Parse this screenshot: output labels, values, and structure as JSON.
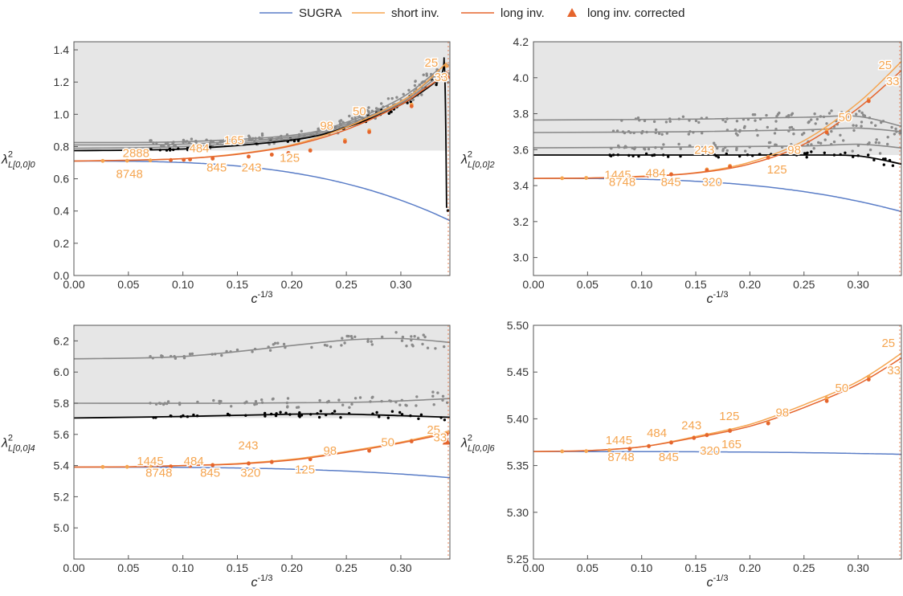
{
  "legend": {
    "items": [
      {
        "label": "SUGRA",
        "color": "#5a7dc7",
        "marker": "line"
      },
      {
        "label": "short inv.",
        "color": "#f5a550",
        "marker": "line"
      },
      {
        "label": "long inv.",
        "color": "#e5652d",
        "marker": "line"
      },
      {
        "label": "long inv. corrected",
        "color": "#e5652d",
        "marker": "triangle"
      }
    ]
  },
  "chart_data": [
    {
      "type": "line",
      "xlabel": "c^{-1/3}",
      "ylabel": "λ²_{L[0,0]0}",
      "xlim": [
        0,
        0.345
      ],
      "ylim": [
        0,
        1.45
      ],
      "xticks": [
        "0.00",
        "0.05",
        "0.10",
        "0.15",
        "0.20",
        "0.25",
        "0.30"
      ],
      "yticks": [
        "0.0",
        "0.2",
        "0.4",
        "0.6",
        "0.8",
        "1.0",
        "1.2",
        "1.4"
      ],
      "shaded_above": 0.775,
      "gray_series": [
        [
          0.0,
          0.825,
          0.1,
          0.83,
          0.2,
          0.87,
          0.25,
          0.95,
          0.3,
          1.1,
          0.335,
          1.28
        ],
        [
          0.0,
          0.81,
          0.1,
          0.815,
          0.2,
          0.86,
          0.25,
          0.94,
          0.3,
          1.08,
          0.335,
          1.26
        ],
        [
          0.0,
          0.79,
          0.1,
          0.8,
          0.2,
          0.85,
          0.25,
          0.93,
          0.3,
          1.07,
          0.335,
          1.24
        ]
      ],
      "black_series": [
        0.0,
        0.775,
        0.1,
        0.785,
        0.2,
        0.84,
        0.25,
        0.92,
        0.3,
        1.06,
        0.335,
        1.22,
        0.34,
        1.3,
        0.342,
        0.42
      ],
      "sugra": {
        "a": 0.71,
        "k": 9.0
      },
      "short": [
        0.0,
        0.71,
        0.05,
        0.715,
        0.1,
        0.725,
        0.15,
        0.755,
        0.2,
        0.81,
        0.25,
        0.92,
        0.3,
        1.08,
        0.32,
        1.18,
        0.342,
        1.32
      ],
      "long": [
        0.0,
        0.71,
        0.05,
        0.715,
        0.1,
        0.725,
        0.15,
        0.752,
        0.2,
        0.805,
        0.25,
        0.905,
        0.3,
        1.06,
        0.32,
        1.15,
        0.342,
        1.25
      ],
      "short_points": [
        [
          0.0265,
          0.711
        ],
        [
          0.0488,
          0.712
        ],
        [
          0.0701,
          0.714
        ],
        [
          0.0889,
          0.716
        ],
        [
          0.1008,
          0.718
        ],
        [
          0.1066,
          0.72
        ],
        [
          0.1273,
          0.725
        ],
        [
          0.1603,
          0.738
        ],
        [
          0.1816,
          0.75
        ],
        [
          0.1968,
          0.76
        ],
        [
          0.2169,
          0.778
        ],
        [
          0.2487,
          0.84
        ],
        [
          0.271,
          0.9
        ],
        [
          0.3098,
          1.06
        ],
        [
          0.3419,
          1.3
        ]
      ],
      "long_points": [
        [
          0.0889,
          0.716
        ],
        [
          0.1008,
          0.718
        ],
        [
          0.1066,
          0.72
        ],
        [
          0.1273,
          0.726
        ],
        [
          0.1603,
          0.738
        ],
        [
          0.1816,
          0.75
        ],
        [
          0.1968,
          0.76
        ],
        [
          0.2169,
          0.775
        ],
        [
          0.2487,
          0.83
        ],
        [
          0.271,
          0.89
        ],
        [
          0.3098,
          1.05
        ],
        [
          0.3419,
          1.25
        ]
      ],
      "corrected": [
        [
          0.3419,
          1.24
        ]
      ],
      "labels": [
        {
          "text": "25",
          "x": 0.328,
          "y": 1.32
        },
        {
          "text": "33",
          "x": 0.337,
          "y": 1.23
        },
        {
          "text": "50",
          "x": 0.262,
          "y": 1.02
        },
        {
          "text": "98",
          "x": 0.232,
          "y": 0.93
        },
        {
          "text": "165",
          "x": 0.147,
          "y": 0.84
        },
        {
          "text": "125",
          "x": 0.198,
          "y": 0.73
        },
        {
          "text": "484",
          "x": 0.115,
          "y": 0.79
        },
        {
          "text": "243",
          "x": 0.163,
          "y": 0.67
        },
        {
          "text": "2888",
          "x": 0.057,
          "y": 0.76
        },
        {
          "text": "845",
          "x": 0.131,
          "y": 0.67
        },
        {
          "text": "8748",
          "x": 0.051,
          "y": 0.63
        }
      ]
    },
    {
      "type": "line",
      "xlabel": "c^{-1/3}",
      "ylabel": "λ²_{L[0,0]2}",
      "xlim": [
        0,
        0.34
      ],
      "ylim": [
        2.9,
        4.2
      ],
      "xticks": [
        "0.00",
        "0.05",
        "0.10",
        "0.15",
        "0.20",
        "0.25",
        "0.30"
      ],
      "yticks": [
        "3.0",
        "3.2",
        "3.4",
        "3.6",
        "3.8",
        "4.0",
        "4.2"
      ],
      "shaded_above": 3.57,
      "gray_series": [
        [
          0.0,
          3.765,
          0.15,
          3.77,
          0.25,
          3.78,
          0.3,
          3.785,
          0.34,
          3.73
        ],
        [
          0.0,
          3.695,
          0.15,
          3.7,
          0.25,
          3.71,
          0.3,
          3.72,
          0.34,
          3.7
        ],
        [
          0.0,
          3.61,
          0.15,
          3.615,
          0.25,
          3.62,
          0.3,
          3.63,
          0.34,
          3.61
        ]
      ],
      "black_series": [
        0.0,
        3.57,
        0.15,
        3.57,
        0.25,
        3.57,
        0.3,
        3.565,
        0.34,
        3.52
      ],
      "sugra": {
        "a": 3.44,
        "k": 4.7
      },
      "short": [
        0.0,
        3.44,
        0.05,
        3.442,
        0.1,
        3.452,
        0.15,
        3.472,
        0.2,
        3.53,
        0.25,
        3.65,
        0.3,
        3.86,
        0.34,
        4.09
      ],
      "long": [
        0.0,
        3.44,
        0.05,
        3.442,
        0.1,
        3.45,
        0.15,
        3.47,
        0.2,
        3.52,
        0.25,
        3.63,
        0.3,
        3.83,
        0.34,
        4.04
      ],
      "short_points": [
        [
          0.0265,
          3.441
        ],
        [
          0.0488,
          3.443
        ],
        [
          0.0701,
          3.446
        ],
        [
          0.0889,
          3.449
        ],
        [
          0.1066,
          3.455
        ],
        [
          0.1273,
          3.464
        ],
        [
          0.1603,
          3.49
        ],
        [
          0.1816,
          3.51
        ],
        [
          0.2169,
          3.56
        ],
        [
          0.271,
          3.71
        ],
        [
          0.3098,
          3.88
        ]
      ],
      "long_points": [
        [
          0.0889,
          3.448
        ],
        [
          0.1066,
          3.453
        ],
        [
          0.1273,
          3.462
        ],
        [
          0.1603,
          3.485
        ],
        [
          0.1816,
          3.505
        ],
        [
          0.2169,
          3.555
        ],
        [
          0.271,
          3.695
        ],
        [
          0.3098,
          3.87
        ]
      ],
      "corrected": [],
      "labels": [
        {
          "text": "25",
          "x": 0.325,
          "y": 4.07
        },
        {
          "text": "33",
          "x": 0.332,
          "y": 3.98
        },
        {
          "text": "50",
          "x": 0.288,
          "y": 3.78
        },
        {
          "text": "98",
          "x": 0.241,
          "y": 3.6
        },
        {
          "text": "243",
          "x": 0.158,
          "y": 3.6
        },
        {
          "text": "125",
          "x": 0.225,
          "y": 3.49
        },
        {
          "text": "1445",
          "x": 0.078,
          "y": 3.46
        },
        {
          "text": "484",
          "x": 0.113,
          "y": 3.47
        },
        {
          "text": "320",
          "x": 0.165,
          "y": 3.42
        },
        {
          "text": "845",
          "x": 0.127,
          "y": 3.42
        },
        {
          "text": "8748",
          "x": 0.082,
          "y": 3.42
        }
      ]
    },
    {
      "type": "line",
      "xlabel": "c^{-1/3}",
      "ylabel": "λ²_{L[0,0]4}",
      "xlim": [
        0,
        0.345
      ],
      "ylim": [
        4.8,
        6.3
      ],
      "xticks": [
        "0.00",
        "0.05",
        "0.10",
        "0.15",
        "0.20",
        "0.25",
        "0.30"
      ],
      "yticks": [
        "5.0",
        "5.2",
        "5.4",
        "5.6",
        "5.8",
        "6.0",
        "6.2"
      ],
      "shaded_above": 5.705,
      "gray_series": [
        [
          0.0,
          6.085,
          0.1,
          6.1,
          0.2,
          6.17,
          0.25,
          6.205,
          0.3,
          6.215,
          0.345,
          6.19
        ],
        [
          0.0,
          5.8,
          0.15,
          5.8,
          0.25,
          5.805,
          0.3,
          5.815,
          0.345,
          5.83
        ]
      ],
      "black_series": [
        0.0,
        5.705,
        0.1,
        5.715,
        0.2,
        5.73,
        0.25,
        5.73,
        0.3,
        5.72,
        0.345,
        5.71
      ],
      "sugra": {
        "a": 5.39,
        "k": 1.65
      },
      "short": [
        0.0,
        5.39,
        0.05,
        5.392,
        0.1,
        5.4,
        0.15,
        5.413,
        0.2,
        5.44,
        0.25,
        5.49,
        0.3,
        5.55,
        0.345,
        5.62
      ],
      "long": [
        0.0,
        5.39,
        0.05,
        5.392,
        0.1,
        5.4,
        0.15,
        5.41,
        0.2,
        5.435,
        0.25,
        5.485,
        0.3,
        5.545,
        0.345,
        5.61
      ],
      "short_points": [
        [
          0.0265,
          5.391
        ],
        [
          0.0488,
          5.392
        ],
        [
          0.0701,
          5.394
        ],
        [
          0.0889,
          5.395
        ],
        [
          0.1066,
          5.398
        ],
        [
          0.1273,
          5.404
        ],
        [
          0.1603,
          5.415
        ],
        [
          0.1816,
          5.425
        ],
        [
          0.2169,
          5.445
        ],
        [
          0.271,
          5.5
        ],
        [
          0.3098,
          5.56
        ],
        [
          0.3419,
          5.61
        ]
      ],
      "long_points": [
        [
          0.0889,
          5.394
        ],
        [
          0.1066,
          5.397
        ],
        [
          0.1273,
          5.402
        ],
        [
          0.1603,
          5.413
        ],
        [
          0.1816,
          5.422
        ],
        [
          0.2169,
          5.44
        ],
        [
          0.271,
          5.495
        ],
        [
          0.3098,
          5.555
        ],
        [
          0.3419,
          5.6
        ]
      ],
      "corrected": [
        [
          0.3419,
          5.555
        ]
      ],
      "labels": [
        {
          "text": "25",
          "x": 0.33,
          "y": 5.63
        },
        {
          "text": "33",
          "x": 0.336,
          "y": 5.58
        },
        {
          "text": "50",
          "x": 0.288,
          "y": 5.55
        },
        {
          "text": "98",
          "x": 0.235,
          "y": 5.495
        },
        {
          "text": "125",
          "x": 0.212,
          "y": 5.375
        },
        {
          "text": "243",
          "x": 0.16,
          "y": 5.53
        },
        {
          "text": "1445",
          "x": 0.07,
          "y": 5.43
        },
        {
          "text": "484",
          "x": 0.11,
          "y": 5.43
        },
        {
          "text": "320",
          "x": 0.162,
          "y": 5.355
        },
        {
          "text": "845",
          "x": 0.125,
          "y": 5.355
        },
        {
          "text": "8748",
          "x": 0.078,
          "y": 5.355
        }
      ]
    },
    {
      "type": "line",
      "xlabel": "c^{-1/3}",
      "ylabel": "λ²_{L[0,0]6}",
      "xlim": [
        0,
        0.34
      ],
      "ylim": [
        5.25,
        5.5
      ],
      "xticks": [
        "0.00",
        "0.05",
        "0.10",
        "0.15",
        "0.20",
        "0.25",
        "0.30"
      ],
      "yticks": [
        "5.25",
        "5.30",
        "5.35",
        "5.40",
        "5.45",
        "5.50"
      ],
      "shaded_above": null,
      "gray_series": [],
      "black_series": [],
      "sugra": {
        "a": 5.365,
        "k": 0.0756
      },
      "short": [
        0.0,
        5.365,
        0.05,
        5.366,
        0.1,
        5.37,
        0.15,
        5.381,
        0.2,
        5.394,
        0.25,
        5.415,
        0.3,
        5.44,
        0.34,
        5.47
      ],
      "long": [
        0.0,
        5.365,
        0.05,
        5.366,
        0.1,
        5.37,
        0.15,
        5.38,
        0.2,
        5.392,
        0.25,
        5.412,
        0.3,
        5.437,
        0.34,
        5.465
      ],
      "short_points": [
        [
          0.0265,
          5.3652
        ],
        [
          0.0488,
          5.3655
        ],
        [
          0.0701,
          5.3664
        ],
        [
          0.0889,
          5.368
        ],
        [
          0.1066,
          5.371
        ],
        [
          0.1273,
          5.375
        ],
        [
          0.1483,
          5.38
        ],
        [
          0.1603,
          5.383
        ],
        [
          0.1816,
          5.388
        ],
        [
          0.2169,
          5.396
        ],
        [
          0.271,
          5.422
        ],
        [
          0.3098,
          5.445
        ]
      ],
      "long_points": [
        [
          0.0889,
          5.3678
        ],
        [
          0.1066,
          5.3707
        ],
        [
          0.1273,
          5.3745
        ],
        [
          0.1483,
          5.3795
        ],
        [
          0.1603,
          5.3825
        ],
        [
          0.1816,
          5.387
        ],
        [
          0.2169,
          5.395
        ],
        [
          0.271,
          5.419
        ],
        [
          0.3098,
          5.442
        ]
      ],
      "corrected": [],
      "labels": [
        {
          "text": "25",
          "x": 0.328,
          "y": 5.481
        },
        {
          "text": "33",
          "x": 0.333,
          "y": 5.452
        },
        {
          "text": "50",
          "x": 0.285,
          "y": 5.433
        },
        {
          "text": "98",
          "x": 0.23,
          "y": 5.407
        },
        {
          "text": "125",
          "x": 0.181,
          "y": 5.403
        },
        {
          "text": "165",
          "x": 0.183,
          "y": 5.373
        },
        {
          "text": "243",
          "x": 0.146,
          "y": 5.393
        },
        {
          "text": "484",
          "x": 0.114,
          "y": 5.385
        },
        {
          "text": "1445",
          "x": 0.079,
          "y": 5.377
        },
        {
          "text": "320",
          "x": 0.163,
          "y": 5.366
        },
        {
          "text": "845",
          "x": 0.125,
          "y": 5.359
        },
        {
          "text": "8748",
          "x": 0.081,
          "y": 5.359
        }
      ]
    }
  ]
}
